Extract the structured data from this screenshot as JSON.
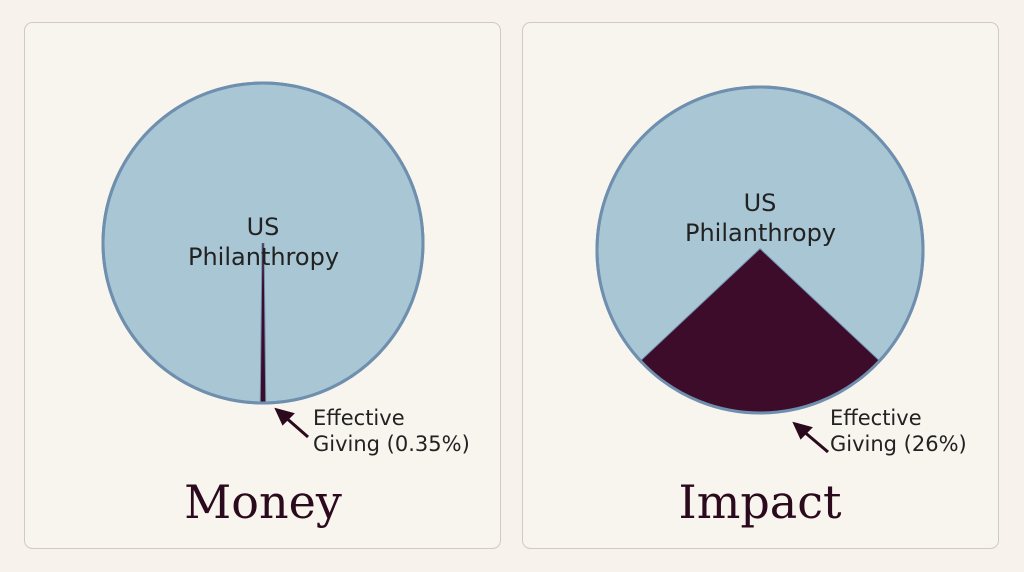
{
  "chart_data": [
    {
      "type": "pie",
      "title": "Money",
      "categories": [
        "US Philanthropy",
        "Effective Giving (0.35%)"
      ],
      "values": [
        99.65,
        0.35
      ],
      "colors": [
        "#a9c6d5",
        "#3d0c2a"
      ]
    },
    {
      "type": "pie",
      "title": "Impact",
      "categories": [
        "US Philanthropy",
        "Effective Giving (26%)"
      ],
      "values": [
        74,
        26
      ],
      "colors": [
        "#a9c6d5",
        "#3d0c2a"
      ]
    }
  ]
}
